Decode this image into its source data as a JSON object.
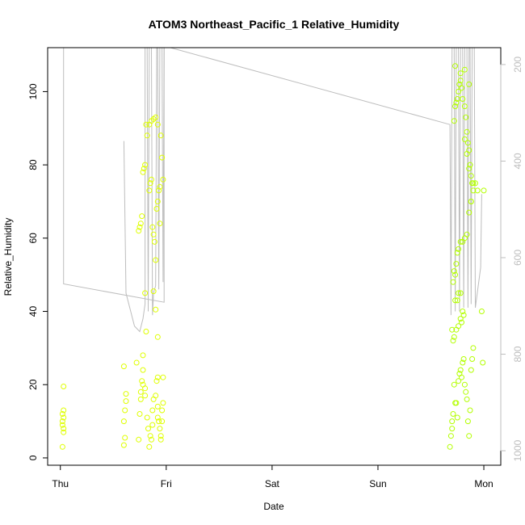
{
  "chart_data": {
    "type": "scatter",
    "title": "ATOM3 Northeast_Pacific_1 Relative_Humidity",
    "xlabel": "Date",
    "ylabel": "Relative_Humidity",
    "x_ticks": [
      "Thu",
      "Fri",
      "Sat",
      "Sun",
      "Mon"
    ],
    "x_unit": "days",
    "xlim": [
      -0.12,
      4.16
    ],
    "ylim": [
      -2,
      112
    ],
    "y_ticks": [
      0,
      20,
      40,
      60,
      80,
      100
    ],
    "y2_label": "",
    "y2_ticks": [
      200,
      400,
      600,
      800,
      1000
    ],
    "y2lim": [
      1030,
      165
    ],
    "grid": false,
    "legend": "none",
    "colors": {
      "points": "#b3ff00",
      "points_alt": "#dfff00",
      "profile_line": "#bdbdbd",
      "axes": "#000000",
      "right_axis": "#bdbdbd"
    },
    "series": [
      {
        "name": "",
        "points": [
          [
            0.02,
            3
          ],
          [
            0.03,
            7
          ],
          [
            0.02,
            9
          ],
          [
            0.03,
            11
          ],
          [
            0.02,
            12
          ],
          [
            0.03,
            13
          ],
          [
            0.02,
            10
          ],
          [
            0.03,
            8
          ],
          [
            0.03,
            19.5
          ],
          [
            0.6,
            3.5
          ],
          [
            0.61,
            5.5
          ],
          [
            0.6,
            10
          ],
          [
            0.61,
            13
          ],
          [
            0.62,
            15.5
          ],
          [
            0.62,
            17.5
          ],
          [
            0.6,
            25
          ],
          [
            0.72,
            26
          ],
          [
            0.74,
            5
          ],
          [
            0.75,
            12
          ],
          [
            0.76,
            16
          ],
          [
            0.76,
            18
          ],
          [
            0.77,
            21
          ],
          [
            0.78,
            20
          ],
          [
            0.78,
            24
          ],
          [
            0.78,
            28
          ],
          [
            0.8,
            17
          ],
          [
            0.8,
            19
          ],
          [
            0.82,
            11
          ],
          [
            0.83,
            8
          ],
          [
            0.84,
            3
          ],
          [
            0.85,
            6
          ],
          [
            0.86,
            5
          ],
          [
            0.87,
            9
          ],
          [
            0.87,
            13
          ],
          [
            0.88,
            16
          ],
          [
            0.9,
            17
          ],
          [
            0.91,
            21
          ],
          [
            0.92,
            22
          ],
          [
            0.92,
            14
          ],
          [
            0.92,
            11
          ],
          [
            0.93,
            10
          ],
          [
            0.94,
            8
          ],
          [
            0.95,
            6
          ],
          [
            0.95,
            5
          ],
          [
            0.96,
            10
          ],
          [
            0.96,
            13
          ],
          [
            0.97,
            15
          ],
          [
            0.97,
            22
          ],
          [
            0.74,
            62
          ],
          [
            0.75,
            63
          ],
          [
            0.76,
            64
          ],
          [
            0.77,
            66
          ],
          [
            0.78,
            78
          ],
          [
            0.79,
            79
          ],
          [
            0.8,
            80
          ],
          [
            0.81,
            91
          ],
          [
            0.82,
            88
          ],
          [
            0.84,
            73
          ],
          [
            0.85,
            75
          ],
          [
            0.86,
            76
          ],
          [
            0.87,
            63
          ],
          [
            0.88,
            61
          ],
          [
            0.89,
            59
          ],
          [
            0.9,
            54
          ],
          [
            0.91,
            68
          ],
          [
            0.92,
            70
          ],
          [
            0.93,
            73
          ],
          [
            0.94,
            74
          ],
          [
            0.95,
            88
          ],
          [
            0.96,
            82
          ],
          [
            0.97,
            76
          ],
          [
            0.8,
            45
          ],
          [
            0.81,
            34.5
          ],
          [
            0.88,
            45.5
          ],
          [
            0.9,
            40.5
          ],
          [
            0.92,
            33
          ],
          [
            0.84,
            91
          ],
          [
            0.86,
            92
          ],
          [
            0.88,
            92.5
          ],
          [
            0.9,
            93
          ],
          [
            0.92,
            91
          ],
          [
            0.94,
            64
          ],
          [
            3.68,
            3
          ],
          [
            3.69,
            6
          ],
          [
            3.7,
            8
          ],
          [
            3.7,
            10
          ],
          [
            3.71,
            12
          ],
          [
            3.72,
            20
          ],
          [
            3.73,
            15
          ],
          [
            3.74,
            15
          ],
          [
            3.75,
            11
          ],
          [
            3.76,
            21
          ],
          [
            3.77,
            23
          ],
          [
            3.78,
            24
          ],
          [
            3.79,
            22
          ],
          [
            3.8,
            26
          ],
          [
            3.81,
            27
          ],
          [
            3.82,
            20
          ],
          [
            3.83,
            18
          ],
          [
            3.84,
            16
          ],
          [
            3.85,
            10
          ],
          [
            3.86,
            6
          ],
          [
            3.87,
            13
          ],
          [
            3.88,
            24
          ],
          [
            3.89,
            27
          ],
          [
            3.9,
            30
          ],
          [
            3.7,
            35
          ],
          [
            3.71,
            32
          ],
          [
            3.72,
            33
          ],
          [
            3.74,
            35
          ],
          [
            3.76,
            36
          ],
          [
            3.78,
            38
          ],
          [
            3.79,
            37
          ],
          [
            3.8,
            40
          ],
          [
            3.81,
            39
          ],
          [
            3.71,
            48
          ],
          [
            3.72,
            51
          ],
          [
            3.73,
            50
          ],
          [
            3.74,
            53
          ],
          [
            3.75,
            56
          ],
          [
            3.76,
            57
          ],
          [
            3.78,
            59
          ],
          [
            3.8,
            59
          ],
          [
            3.82,
            60
          ],
          [
            3.84,
            61
          ],
          [
            3.86,
            67
          ],
          [
            3.88,
            70
          ],
          [
            3.9,
            75
          ],
          [
            3.92,
            75
          ],
          [
            3.94,
            73
          ],
          [
            3.73,
            43
          ],
          [
            3.75,
            43
          ],
          [
            3.76,
            45
          ],
          [
            3.78,
            45
          ],
          [
            3.72,
            92
          ],
          [
            3.73,
            96
          ],
          [
            3.74,
            97
          ],
          [
            3.75,
            98
          ],
          [
            3.76,
            100
          ],
          [
            3.77,
            102
          ],
          [
            3.78,
            103
          ],
          [
            3.79,
            101
          ],
          [
            3.8,
            98
          ],
          [
            3.82,
            96
          ],
          [
            3.83,
            93
          ],
          [
            3.84,
            89
          ],
          [
            3.85,
            86
          ],
          [
            3.86,
            84
          ],
          [
            3.87,
            80
          ],
          [
            3.88,
            77
          ],
          [
            3.89,
            75
          ],
          [
            3.9,
            73
          ],
          [
            3.82,
            87
          ],
          [
            3.84,
            83
          ],
          [
            3.86,
            79
          ],
          [
            3.88,
            70
          ],
          [
            3.73,
            107
          ],
          [
            3.78,
            105
          ],
          [
            3.82,
            106
          ],
          [
            3.86,
            102
          ],
          [
            3.98,
            40
          ],
          [
            3.99,
            26
          ],
          [
            4.0,
            73
          ]
        ]
      }
    ],
    "profile_lines": [
      [
        [
          0.03,
          112
        ],
        [
          0.03,
          47.5
        ],
        [
          0.98,
          42.5
        ],
        [
          0.98,
          112
        ]
      ],
      [
        [
          0.6,
          86.5
        ],
        [
          0.62,
          45
        ],
        [
          0.7,
          36
        ],
        [
          0.75,
          34.5
        ],
        [
          0.78,
          38
        ],
        [
          0.8,
          42
        ],
        [
          0.8,
          112
        ]
      ],
      [
        [
          0.82,
          112
        ],
        [
          0.83,
          40
        ],
        [
          0.84,
          112
        ]
      ],
      [
        [
          0.86,
          112
        ],
        [
          0.87,
          39
        ],
        [
          0.88,
          45
        ],
        [
          0.9,
          47
        ],
        [
          0.91,
          112
        ]
      ],
      [
        [
          0.92,
          112
        ],
        [
          0.93,
          46
        ],
        [
          0.94,
          112
        ]
      ],
      [
        [
          0.96,
          112
        ],
        [
          0.97,
          48
        ],
        [
          0.98,
          112
        ]
      ],
      [
        [
          1.04,
          112
        ],
        [
          3.68,
          91
        ],
        [
          3.69,
          39
        ],
        [
          3.7,
          112
        ]
      ],
      [
        [
          3.72,
          112
        ],
        [
          3.73,
          40
        ],
        [
          3.74,
          112
        ]
      ],
      [
        [
          3.76,
          112
        ],
        [
          3.77,
          40
        ],
        [
          3.78,
          112
        ]
      ],
      [
        [
          3.8,
          112
        ],
        [
          3.81,
          41
        ],
        [
          3.82,
          112
        ]
      ],
      [
        [
          3.84,
          112
        ],
        [
          3.85,
          41
        ],
        [
          3.86,
          112
        ]
      ],
      [
        [
          3.87,
          112
        ],
        [
          3.88,
          42
        ],
        [
          3.89,
          112
        ]
      ],
      [
        [
          3.91,
          112
        ],
        [
          3.92,
          41
        ],
        [
          3.97,
          52
        ],
        [
          3.98,
          72
        ]
      ]
    ]
  }
}
